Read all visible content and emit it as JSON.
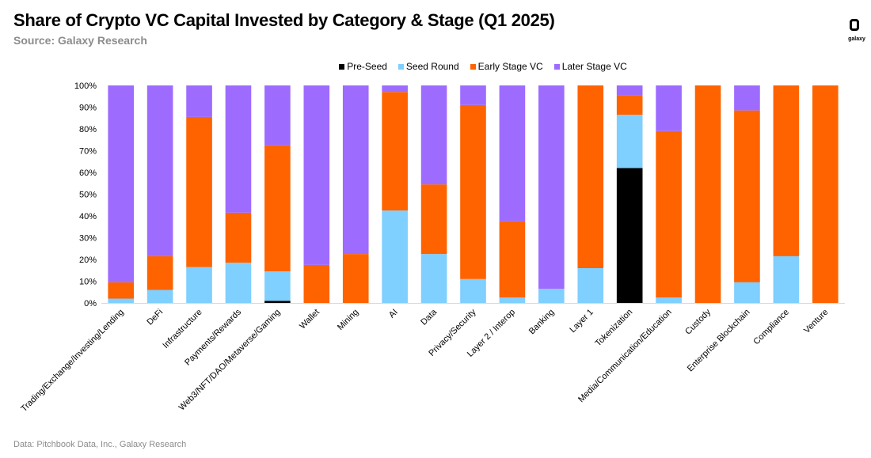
{
  "header": {
    "title": "Share of Crypto VC Capital Invested by Category & Stage (Q1 2025)",
    "subtitle": "Source: Galaxy Research",
    "logo_text": "galaxy"
  },
  "footer": {
    "note": "Data: Pitchbook Data, Inc., Galaxy Research"
  },
  "chart_data": {
    "type": "bar",
    "stacked": true,
    "title": "Share of Crypto VC Capital Invested by Category & Stage (Q1 2025)",
    "xlabel": "",
    "ylabel": "",
    "ylim": [
      0,
      100
    ],
    "yticks": [
      "0%",
      "10%",
      "20%",
      "30%",
      "40%",
      "50%",
      "60%",
      "70%",
      "80%",
      "90%",
      "100%"
    ],
    "legend_position": "top-center",
    "categories": [
      "Trading/Exchange/Investing/Lending",
      "DeFi",
      "Infrastructure",
      "Payments/Rewards",
      "Web3/NFT/DAO/Metaverse/Gaming",
      "Wallet",
      "Mining",
      "AI",
      "Data",
      "Privacy/Security",
      "Layer 2 / Interop",
      "Banking",
      "Layer 1",
      "Tokenization",
      "Media/Communication/Education",
      "Custody",
      "Enterprise Blockchain",
      "Compliance",
      "Venture"
    ],
    "series": [
      {
        "name": "Pre-Seed",
        "color": "#000000",
        "values": [
          0,
          0,
          0,
          0,
          1,
          0,
          0,
          0,
          0,
          0,
          0,
          0,
          0,
          62,
          0,
          0,
          0,
          0,
          0
        ]
      },
      {
        "name": "Seed Round",
        "color": "#7fcfff",
        "values": [
          2,
          6,
          16.5,
          18.5,
          13.5,
          0,
          0,
          42.5,
          22.5,
          11,
          2.5,
          6.5,
          16,
          24.5,
          2.5,
          0,
          9.5,
          21.5,
          0
        ]
      },
      {
        "name": "Early Stage VC",
        "color": "#ff6300",
        "values": [
          7.5,
          15.5,
          69,
          23,
          58,
          17.5,
          22.5,
          54.5,
          32,
          80,
          35,
          0,
          84,
          9,
          76.5,
          100,
          79,
          78.5,
          100
        ]
      },
      {
        "name": "Later Stage VC",
        "color": "#9e6bff",
        "values": [
          90.5,
          78.5,
          14.5,
          58.5,
          27.5,
          82.5,
          77.5,
          3,
          45.5,
          9,
          62.5,
          93.5,
          0,
          4.5,
          21,
          0,
          11.5,
          0,
          0
        ]
      }
    ]
  }
}
